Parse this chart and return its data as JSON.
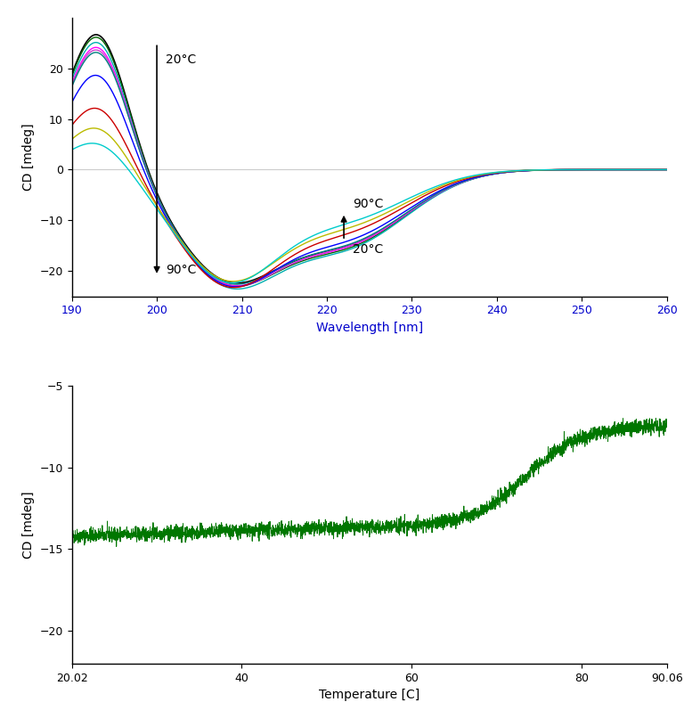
{
  "top_plot": {
    "xlim": [
      190,
      260
    ],
    "ylim": [
      -25,
      30
    ],
    "xlabel": "Wavelength [nm]",
    "ylabel": "CD [mdeg]",
    "xticks": [
      190,
      200,
      210,
      220,
      230,
      240,
      250,
      260
    ],
    "yticks": [
      -20,
      -10,
      0,
      10,
      20
    ],
    "zero_line_color": "#cccccc",
    "xlabel_color": "#0000cc",
    "curves": [
      {
        "color": "#000000",
        "peak": 27.5,
        "trough1": -19.5,
        "trough2": -14.0,
        "lw": 1.2
      },
      {
        "color": "#006400",
        "peak": 27.0,
        "trough1": -20.0,
        "trough2": -14.5,
        "lw": 1.0
      },
      {
        "color": "#00b0b0",
        "peak": 26.0,
        "trough1": -20.5,
        "trough2": -14.8,
        "lw": 1.0
      },
      {
        "color": "#ff00ff",
        "peak": 25.0,
        "trough1": -20.0,
        "trough2": -14.2,
        "lw": 1.0
      },
      {
        "color": "#cc44cc",
        "peak": 24.5,
        "trough1": -20.2,
        "trough2": -14.0,
        "lw": 1.0
      },
      {
        "color": "#008080",
        "peak": 24.0,
        "trough1": -19.8,
        "trough2": -13.8,
        "lw": 1.0
      },
      {
        "color": "#0000ff",
        "peak": 19.5,
        "trough1": -20.5,
        "trough2": -13.0,
        "lw": 1.0
      },
      {
        "color": "#cc0000",
        "peak": 13.0,
        "trough1": -21.0,
        "trough2": -11.5,
        "lw": 1.0
      },
      {
        "color": "#bbbb00",
        "peak": 9.0,
        "trough1": -20.0,
        "trough2": -10.5,
        "lw": 1.0
      },
      {
        "color": "#00cccc",
        "peak": 6.0,
        "trough1": -20.5,
        "trough2": -9.5,
        "lw": 1.0
      }
    ]
  },
  "bottom_plot": {
    "xlim": [
      20.02,
      90.06
    ],
    "ylim": [
      -22,
      -5
    ],
    "xlabel": "Temperature [C]",
    "ylabel": "CD [mdeg]",
    "xticks": [
      20.02,
      40,
      60,
      80,
      90.06
    ],
    "xtick_labels": [
      "20.02",
      "40",
      "60",
      "80",
      "90.06"
    ],
    "yticks": [
      -20,
      -15,
      -10,
      -5
    ],
    "curve_color": "#007700"
  },
  "background_color": "#ffffff",
  "font_size": 10,
  "tick_font_size": 9
}
